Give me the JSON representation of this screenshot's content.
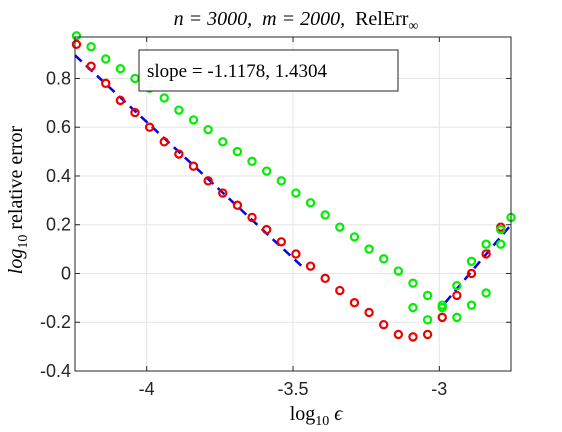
{
  "chart_data": {
    "type": "scatter",
    "title": {
      "n_part": "n = 3000,",
      "m_part": "m = 2000,",
      "relerr_base": "RelErr",
      "relerr_sub": "∞"
    },
    "xlabel": {
      "base": "log",
      "sub": "10",
      "symbol": "ϵ"
    },
    "ylabel": {
      "base": "log",
      "sub": "10",
      "rest": " relative error"
    },
    "xlim": [
      -4.245,
      -2.755
    ],
    "ylim": [
      -0.4,
      0.97
    ],
    "xticks": [
      -4,
      -3.5,
      -3
    ],
    "xtick_labels": [
      "-4",
      "-3.5",
      "-3"
    ],
    "yticks": [
      -0.4,
      -0.2,
      0,
      0.2,
      0.4,
      0.6,
      0.8
    ],
    "ytick_labels": [
      "-0.4",
      "-0.2",
      "0",
      "0.2",
      "0.4",
      "0.6",
      "0.8"
    ],
    "grid": true,
    "annotation": "slope = -1.1178, 1.4304",
    "series": [
      {
        "marker": "circle",
        "color": "#00ee00",
        "points": [
          [
            -4.24,
            0.975
          ],
          [
            -4.19,
            0.93
          ],
          [
            -4.14,
            0.88
          ],
          [
            -4.09,
            0.84
          ],
          [
            -4.04,
            0.8
          ],
          [
            -3.99,
            0.76
          ],
          [
            -3.94,
            0.72
          ],
          [
            -3.89,
            0.67
          ],
          [
            -3.84,
            0.63
          ],
          [
            -3.79,
            0.59
          ],
          [
            -3.74,
            0.54
          ],
          [
            -3.69,
            0.5
          ],
          [
            -3.64,
            0.46
          ],
          [
            -3.59,
            0.42
          ],
          [
            -3.54,
            0.38
          ],
          [
            -3.49,
            0.33
          ],
          [
            -3.44,
            0.29
          ],
          [
            -3.39,
            0.24
          ],
          [
            -3.34,
            0.19
          ],
          [
            -3.29,
            0.15
          ],
          [
            -3.24,
            0.1
          ],
          [
            -3.19,
            0.06
          ],
          [
            -3.14,
            0.01
          ],
          [
            -3.09,
            -0.04
          ],
          [
            -3.04,
            -0.09
          ],
          [
            -2.99,
            -0.14
          ],
          [
            -2.94,
            -0.18
          ],
          [
            -2.89,
            -0.13
          ],
          [
            -2.84,
            -0.08
          ],
          [
            -2.79,
            0.12
          ]
        ]
      },
      {
        "marker": "circle",
        "color": "#ee0000",
        "points": [
          [
            -4.24,
            0.94
          ],
          [
            -4.19,
            0.85
          ],
          [
            -4.14,
            0.78
          ],
          [
            -4.09,
            0.71
          ],
          [
            -4.04,
            0.66
          ],
          [
            -3.99,
            0.6
          ],
          [
            -3.94,
            0.54
          ],
          [
            -3.89,
            0.49
          ],
          [
            -3.84,
            0.44
          ],
          [
            -3.79,
            0.38
          ],
          [
            -3.74,
            0.33
          ],
          [
            -3.69,
            0.28
          ],
          [
            -3.64,
            0.23
          ],
          [
            -3.59,
            0.18
          ],
          [
            -3.54,
            0.13
          ],
          [
            -3.49,
            0.08
          ],
          [
            -3.44,
            0.03
          ],
          [
            -3.39,
            -0.02
          ],
          [
            -3.34,
            -0.07
          ],
          [
            -3.29,
            -0.12
          ],
          [
            -3.24,
            -0.16
          ],
          [
            -3.19,
            -0.21
          ],
          [
            -3.14,
            -0.25
          ],
          [
            -3.09,
            -0.26
          ],
          [
            -3.04,
            -0.25
          ],
          [
            -2.99,
            -0.18
          ],
          [
            -2.94,
            -0.09
          ],
          [
            -2.89,
            0.0
          ],
          [
            -2.84,
            0.08
          ],
          [
            -2.79,
            0.19
          ]
        ]
      },
      {
        "marker": "circle",
        "color": "#00ee00",
        "points": [
          [
            -3.09,
            -0.14
          ],
          [
            -3.04,
            -0.19
          ],
          [
            -2.99,
            -0.13
          ],
          [
            -2.94,
            -0.05
          ],
          [
            -2.89,
            0.05
          ],
          [
            -2.84,
            0.12
          ],
          [
            -2.79,
            0.18
          ],
          [
            -2.755,
            0.23
          ]
        ]
      }
    ],
    "fit_lines": [
      {
        "color": "#0000ee",
        "style": "dashed",
        "from": [
          -4.245,
          0.895
        ],
        "to": [
          -3.47,
          0.03
        ]
      },
      {
        "color": "#0000ee",
        "style": "dashed",
        "from": [
          -2.98,
          -0.12
        ],
        "to": [
          -2.755,
          0.2
        ]
      }
    ]
  }
}
